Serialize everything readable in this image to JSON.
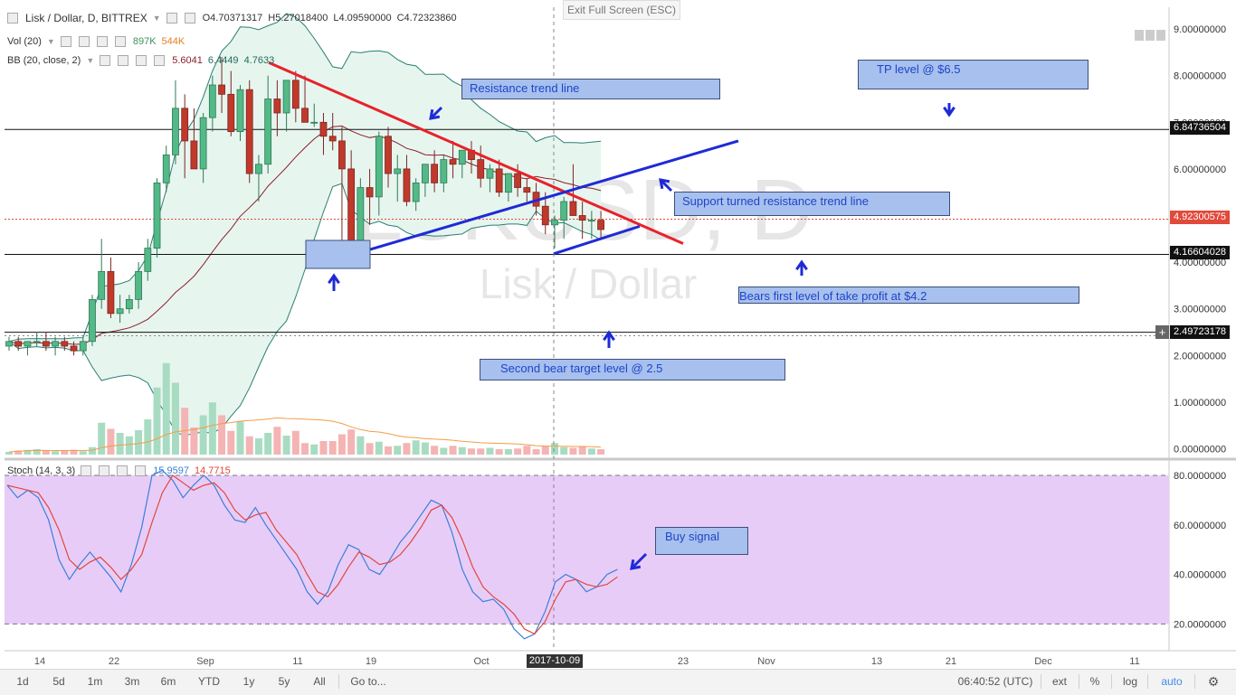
{
  "header": {
    "symbol_title": "Lisk / Dollar, D, BITTREX",
    "ohlc": {
      "open": "O4.70371317",
      "high": "H5.27018400",
      "low": "L4.09590000",
      "close": "C4.72323860"
    },
    "volume_label": "Vol (20)",
    "volume_values": [
      "897K",
      "544K"
    ],
    "bb_label": "BB (20, close, 2)",
    "bb_values": [
      "5.6041",
      "6.4449",
      "4.7633"
    ],
    "exit_fullscreen": "Exit Full Screen (ESC)"
  },
  "watermark": {
    "symbol": "LSKUSD, D",
    "name": "Lisk / Dollar"
  },
  "annotations": [
    "Resistance trend line",
    "TP level @ $6.5",
    "Support turned resistance trend line",
    "Bears first level of take profit at $4.2",
    "Second bear target level @ 2.5",
    "Buy signal"
  ],
  "price_tags": {
    "level_upper": "6.84736504",
    "current": "4.92300575",
    "level_lower": "4.16604028",
    "level_bottom": "2.49723178"
  },
  "stoch": {
    "label": "Stoch (14, 3, 3)",
    "values": [
      "15.9597",
      "14.7715"
    ]
  },
  "time_axis": {
    "labels": [
      "14",
      "22",
      "Sep",
      "11",
      "19",
      "Oct",
      "23",
      "Nov",
      "13",
      "21",
      "Dec",
      "11"
    ],
    "crosshair_date": "2017-10-09"
  },
  "bottom_bar": {
    "timeframes": [
      "1d",
      "5d",
      "1m",
      "3m",
      "6m",
      "YTD",
      "1y",
      "5y",
      "All",
      "Go to..."
    ],
    "clock": "06:40:52 (UTC)",
    "options": [
      "ext",
      "%",
      "log",
      "auto"
    ]
  },
  "colors": {
    "up": "#53b987",
    "down": "#c0392b",
    "bb_fill": "#e7f5ef",
    "stoch_bg": "#e8ccf8",
    "red_line": "#e8222a",
    "blue_line": "#1f2ad6",
    "annotation_fill": "#a7c0ee",
    "cur_price_tag": "#e0493b"
  },
  "chart_data": [
    {
      "type": "candlestick",
      "title": "Lisk / Dollar, D, BITTREX",
      "y_axis": [
        "9.00000000",
        "8.00000000",
        "7.00000000",
        "6.00000000",
        "5.00000000",
        "4.00000000",
        "3.00000000",
        "2.00000000",
        "1.00000000",
        "0.00000000"
      ],
      "ylim": [
        0,
        9.4
      ],
      "candles_ohlc": [
        [
          2.2,
          2.4,
          2.1,
          2.3
        ],
        [
          2.3,
          2.4,
          2.1,
          2.2
        ],
        [
          2.2,
          2.3,
          2.0,
          2.3
        ],
        [
          2.3,
          2.5,
          2.2,
          2.3
        ],
        [
          2.3,
          2.5,
          2.1,
          2.2
        ],
        [
          2.2,
          2.4,
          2.0,
          2.3
        ],
        [
          2.3,
          2.4,
          2.1,
          2.2
        ],
        [
          2.2,
          2.3,
          2.0,
          2.1
        ],
        [
          2.1,
          2.4,
          2.0,
          2.3
        ],
        [
          2.3,
          3.3,
          2.2,
          3.2
        ],
        [
          3.2,
          4.5,
          3.0,
          3.8
        ],
        [
          3.8,
          4.1,
          2.8,
          2.9
        ],
        [
          2.9,
          3.3,
          2.7,
          3.0
        ],
        [
          3.0,
          3.3,
          2.9,
          3.2
        ],
        [
          3.2,
          4.0,
          3.0,
          3.8
        ],
        [
          3.8,
          4.5,
          3.6,
          4.3
        ],
        [
          4.3,
          5.8,
          4.1,
          5.7
        ],
        [
          5.7,
          6.5,
          5.5,
          6.3
        ],
        [
          6.3,
          7.9,
          6.1,
          7.3
        ],
        [
          7.3,
          7.6,
          5.8,
          6.6
        ],
        [
          6.6,
          7.3,
          6.2,
          6.0
        ],
        [
          6.0,
          7.2,
          5.7,
          7.1
        ],
        [
          7.1,
          8.0,
          6.8,
          7.8
        ],
        [
          7.8,
          8.4,
          7.2,
          7.6
        ],
        [
          7.6,
          8.1,
          6.7,
          6.8
        ],
        [
          6.8,
          7.8,
          6.6,
          7.7
        ],
        [
          7.7,
          7.9,
          5.7,
          5.9
        ],
        [
          5.9,
          6.3,
          5.3,
          6.1
        ],
        [
          6.1,
          8.0,
          5.9,
          7.5
        ],
        [
          7.5,
          7.9,
          6.7,
          7.2
        ],
        [
          7.2,
          7.8,
          6.8,
          7.9
        ],
        [
          7.9,
          8.1,
          7.0,
          7.3
        ],
        [
          7.3,
          8.0,
          7.0,
          7.0
        ],
        [
          7.0,
          7.4,
          6.9,
          7.0
        ],
        [
          7.0,
          7.2,
          6.3,
          6.7
        ],
        [
          6.7,
          7.2,
          6.4,
          6.6
        ],
        [
          6.6,
          6.9,
          4.1,
          6.0
        ],
        [
          6.0,
          6.4,
          4.2,
          4.2
        ],
        [
          4.2,
          5.8,
          4.0,
          5.6
        ],
        [
          5.6,
          6.0,
          4.8,
          5.4
        ],
        [
          5.4,
          6.8,
          5.0,
          6.7
        ],
        [
          6.7,
          6.9,
          5.6,
          5.9
        ],
        [
          5.9,
          6.3,
          5.3,
          6.0
        ],
        [
          6.0,
          6.3,
          5.2,
          5.3
        ],
        [
          5.3,
          5.8,
          5.1,
          5.7
        ],
        [
          5.7,
          6.1,
          5.4,
          6.1
        ],
        [
          6.1,
          6.4,
          5.5,
          5.7
        ],
        [
          5.7,
          6.3,
          5.5,
          6.2
        ],
        [
          6.2,
          6.6,
          5.8,
          6.1
        ],
        [
          6.1,
          6.4,
          5.8,
          6.4
        ],
        [
          6.4,
          6.6,
          5.9,
          6.2
        ],
        [
          6.2,
          6.5,
          5.6,
          5.8
        ],
        [
          5.8,
          6.1,
          5.5,
          6.0
        ],
        [
          6.0,
          6.2,
          5.4,
          5.5
        ],
        [
          5.5,
          5.9,
          5.3,
          5.9
        ],
        [
          5.9,
          6.1,
          5.4,
          5.6
        ],
        [
          5.6,
          5.8,
          5.3,
          5.5
        ],
        [
          5.5,
          5.7,
          5.0,
          5.2
        ],
        [
          5.2,
          5.5,
          4.6,
          4.8
        ],
        [
          4.8,
          5.0,
          4.3,
          4.9
        ],
        [
          4.9,
          5.4,
          4.5,
          5.3
        ],
        [
          5.3,
          6.1,
          5.1,
          5.0
        ],
        [
          5.0,
          5.3,
          4.5,
          4.9
        ],
        [
          4.9,
          5.1,
          4.5,
          4.9
        ],
        [
          4.9,
          5.1,
          4.5,
          4.7
        ]
      ],
      "volume": [
        0.4,
        0.6,
        0.7,
        0.8,
        0.6,
        0.5,
        0.6,
        0.7,
        0.5,
        1.1,
        4.7,
        3.8,
        3.2,
        2.7,
        3.6,
        5.2,
        9.9,
        13.5,
        10.6,
        6.9,
        4.0,
        5.8,
        7.7,
        5.8,
        3.5,
        4.9,
        2.7,
        2.4,
        3.2,
        4.1,
        2.8,
        3.5,
        1.7,
        1.5,
        2.0,
        2.0,
        3.0,
        3.7,
        2.7,
        1.7,
        1.9,
        1.2,
        1.3,
        1.7,
        2.1,
        1.8,
        1.3,
        1.0,
        1.3,
        1.1,
        0.9,
        0.9,
        1.0,
        0.8,
        0.8,
        0.9,
        1.3,
        0.8,
        1.2,
        1.7,
        1.1,
        1.0,
        1.2,
        0.9,
        0.8
      ]
    },
    {
      "type": "line",
      "title": "Stoch (14, 3, 3)",
      "y_axis": [
        "80.0000000",
        "60.0000000",
        "40.0000000",
        "20.0000000"
      ],
      "ylim": [
        5,
        85
      ],
      "bands": [
        20,
        80
      ],
      "series": [
        {
          "values": [
            76,
            71,
            74,
            71,
            62,
            46,
            38,
            44,
            49,
            44,
            39,
            33,
            44,
            59,
            80,
            82,
            78,
            71,
            76,
            80,
            76,
            68,
            62,
            61,
            67,
            60,
            54,
            48,
            42,
            33,
            28,
            33,
            44,
            52,
            50,
            42,
            40,
            46,
            53,
            58,
            64,
            70,
            68,
            57,
            42,
            33,
            29,
            30,
            26,
            18,
            14,
            16,
            25,
            37,
            40,
            38,
            33,
            35,
            40,
            42
          ]
        },
        {
          "values": [
            76,
            75,
            74,
            73,
            67,
            58,
            46,
            42,
            45,
            47,
            43,
            38,
            42,
            48,
            61,
            73,
            80,
            77,
            74,
            76,
            77,
            73,
            66,
            62,
            64,
            65,
            58,
            53,
            48,
            40,
            33,
            31,
            36,
            43,
            49,
            47,
            44,
            45,
            48,
            53,
            59,
            66,
            68,
            63,
            54,
            43,
            35,
            31,
            28,
            24,
            18,
            16,
            21,
            30,
            37,
            38,
            36,
            35,
            36,
            39
          ]
        }
      ],
      "values_shown": [
        15.9597,
        14.7715
      ]
    }
  ]
}
